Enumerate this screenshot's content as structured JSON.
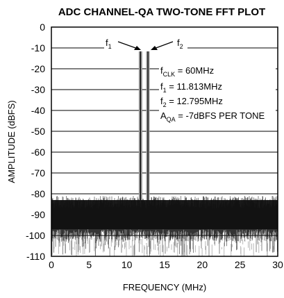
{
  "chart_data": {
    "type": "line",
    "title": "ADC CHANNEL-QA TWO-TONE FFT PLOT",
    "xlabel": "FREQUENCY (MHz)",
    "ylabel": "AMPLITUDE (dBFS)",
    "xlim": [
      0,
      30
    ],
    "ylim": [
      -110,
      0
    ],
    "xticks": [
      0,
      5,
      10,
      15,
      20,
      25,
      30
    ],
    "yticks": [
      0,
      -10,
      -20,
      -30,
      -40,
      -50,
      -60,
      -70,
      -80,
      -90,
      -100,
      -110
    ],
    "grid": "horizontal",
    "noise_floor_dbfs": {
      "typical_top": -83,
      "typical_bottom": -97,
      "min_excursion": -110
    },
    "tones": [
      {
        "name": "f1",
        "frequency_mhz": 11.813,
        "amplitude_dbfs": -7
      },
      {
        "name": "f2",
        "frequency_mhz": 12.795,
        "amplitude_dbfs": -7
      }
    ],
    "annotations": {
      "f1_label": {
        "main": "f",
        "sub": "1"
      },
      "f2_label": {
        "main": "f",
        "sub": "2"
      },
      "fclk": {
        "main": "f",
        "sub": "CLK",
        "rest": " = 60MHz"
      },
      "f1_value": {
        "main": "f",
        "sub": "1",
        "rest": " = 11.813MHz"
      },
      "f2_value": {
        "main": "f",
        "sub": "2",
        "rest": " = 12.795MHz"
      },
      "aqa": {
        "main": "A",
        "sub": "QA",
        "rest": " = -7dBFS PER TONE"
      }
    }
  }
}
